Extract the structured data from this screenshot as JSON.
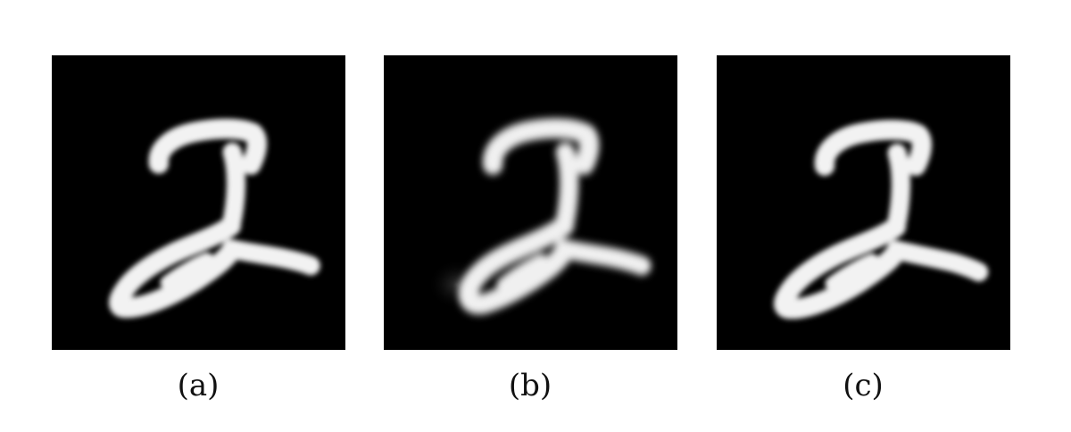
{
  "panels": [
    {
      "caption": "(a)"
    },
    {
      "caption": "(b)"
    },
    {
      "caption": "(c)"
    }
  ],
  "colors": {
    "background": "#ffffff",
    "panel_background": "#000000",
    "digit_stroke": "#f4f4f4"
  }
}
